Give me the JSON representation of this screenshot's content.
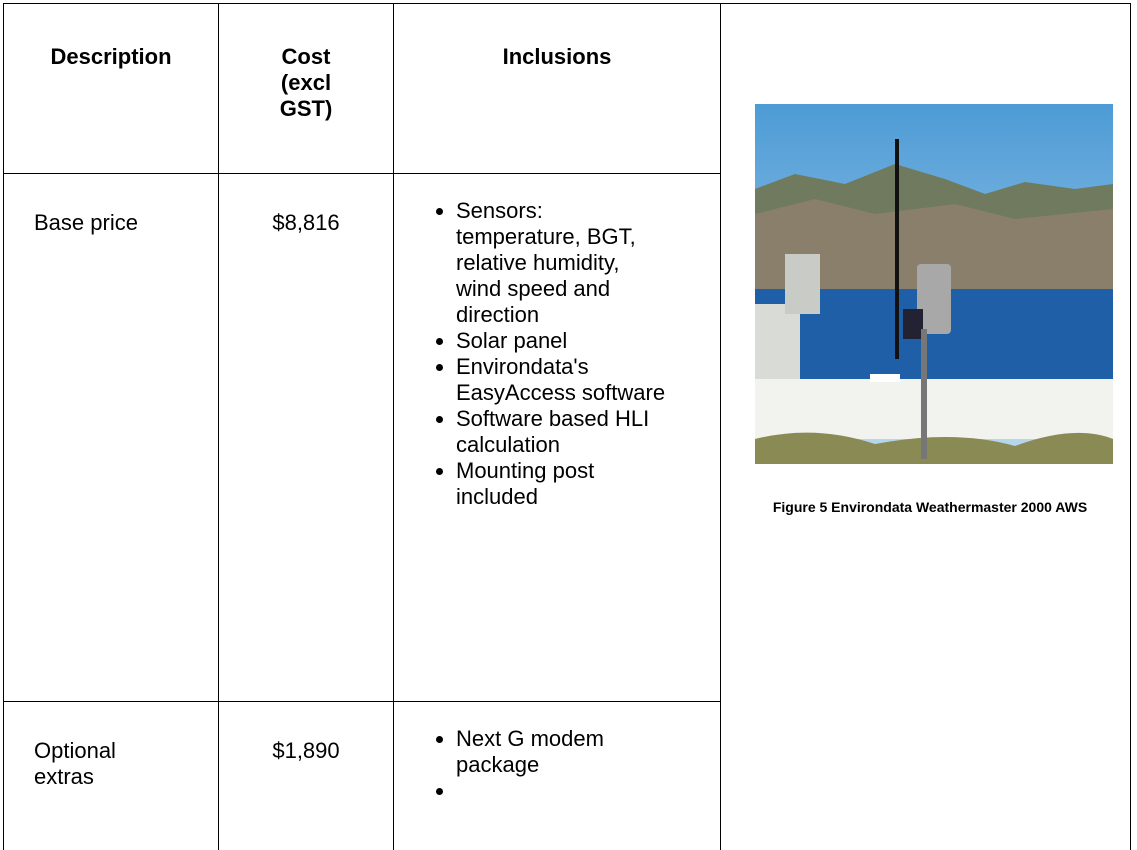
{
  "table": {
    "header": [
      "Description",
      "Cost (excl GST)",
      "Inclusions"
    ],
    "rows": [
      {
        "description": "Base price",
        "cost": "$8,816",
        "inclusions": [
          "Sensors: temperature, BGT, relative humidity, wind speed and direction",
          "Solar panel",
          "Environdata's EasyAccess software",
          "Software based HLI calculation",
          "Mounting post included"
        ]
      },
      {
        "description": "Optional extras",
        "cost": "$1,890",
        "inclusions": [
          "Next G modem package"
        ]
      }
    ]
  },
  "figure": {
    "caption": "Figure 5 Environdata Weathermaster 2000 AWS"
  }
}
